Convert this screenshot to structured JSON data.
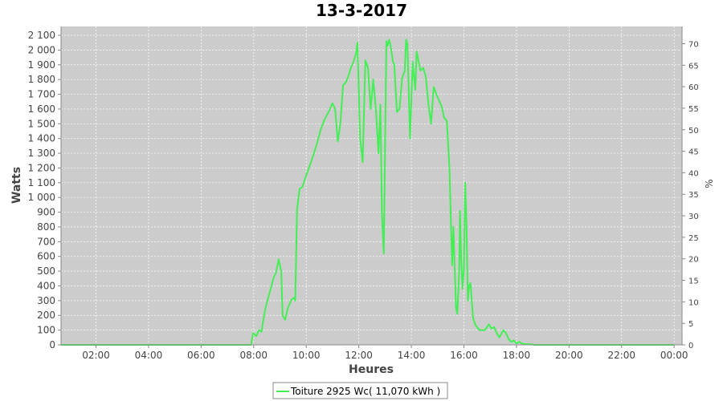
{
  "chart_data": {
    "type": "line",
    "title": "13-3-2017",
    "xlabel": "Heures",
    "ylabel": "Watts",
    "y2label": "%",
    "xlim": [
      0.67,
      24.3
    ],
    "ylim": [
      0,
      2160
    ],
    "y2lim": [
      0,
      74
    ],
    "x_tick_labels": [
      "02:00",
      "04:00",
      "06:00",
      "08:00",
      "10:00",
      "12:00",
      "14:00",
      "16:00",
      "18:00",
      "20:00",
      "22:00",
      "00:00"
    ],
    "y_ticks": [
      0,
      100,
      200,
      300,
      400,
      500,
      600,
      700,
      800,
      900,
      1000,
      1100,
      1200,
      1300,
      1400,
      1500,
      1600,
      1700,
      1800,
      1900,
      2000,
      2100
    ],
    "y_tick_labels": [
      "0",
      "100",
      "200",
      "300",
      "400",
      "500",
      "600",
      "700",
      "800",
      "900",
      "1 000",
      "1 100",
      "1 200",
      "1 300",
      "1 400",
      "1 500",
      "1 600",
      "1 700",
      "1 800",
      "1 900",
      "2 000",
      "2 100"
    ],
    "y2_ticks": [
      0,
      5,
      10,
      15,
      20,
      25,
      30,
      35,
      40,
      45,
      50,
      55,
      60,
      65,
      70
    ],
    "grid": true,
    "legend_position": "bottom-center",
    "series": [
      {
        "name": "Toiture 2925 Wc( 11,070 kWh )",
        "color": "#44ee55",
        "x": [
          0.67,
          7.0,
          7.9,
          7.98,
          8.1,
          8.2,
          8.3,
          8.35,
          8.45,
          8.55,
          8.65,
          8.75,
          8.85,
          8.95,
          9.05,
          9.1,
          9.2,
          9.3,
          9.45,
          9.55,
          9.58,
          9.65,
          9.75,
          9.85,
          10.0,
          10.2,
          10.4,
          10.55,
          10.7,
          10.85,
          11.0,
          11.1,
          11.2,
          11.3,
          11.4,
          11.5,
          11.6,
          11.7,
          11.8,
          11.9,
          11.95,
          12.05,
          12.15,
          12.25,
          12.35,
          12.45,
          12.5,
          12.55,
          12.65,
          12.75,
          12.82,
          12.88,
          12.95,
          13.05,
          13.1,
          13.15,
          13.2,
          13.3,
          13.35,
          13.45,
          13.55,
          13.65,
          13.75,
          13.8,
          13.85,
          13.95,
          14.05,
          14.15,
          14.2,
          14.3,
          14.35,
          14.45,
          14.55,
          14.65,
          14.75,
          14.85,
          14.95,
          15.05,
          15.15,
          15.25,
          15.35,
          15.45,
          15.55,
          15.6,
          15.65,
          15.7,
          15.75,
          15.82,
          15.85,
          15.9,
          15.95,
          16.0,
          16.05,
          16.1,
          16.15,
          16.2,
          16.25,
          16.3,
          16.35,
          16.45,
          16.6,
          16.8,
          16.95,
          17.05,
          17.15,
          17.25,
          17.35,
          17.5,
          17.6,
          17.7,
          17.8,
          17.9,
          18.0,
          18.1,
          18.2,
          18.3,
          18.5,
          18.7,
          19.0,
          24.0
        ],
        "values": [
          0,
          0,
          0,
          80,
          60,
          100,
          90,
          150,
          250,
          320,
          380,
          450,
          490,
          580,
          500,
          200,
          170,
          250,
          310,
          320,
          300,
          920,
          1060,
          1070,
          1150,
          1250,
          1360,
          1460,
          1530,
          1580,
          1640,
          1600,
          1380,
          1500,
          1760,
          1780,
          1820,
          1880,
          1920,
          1980,
          2050,
          1400,
          1240,
          1930,
          1880,
          1600,
          1700,
          1800,
          1600,
          1300,
          1630,
          900,
          620,
          2060,
          2030,
          2070,
          2040,
          1920,
          1900,
          1580,
          1600,
          1810,
          1860,
          2070,
          2040,
          1400,
          1920,
          1730,
          1990,
          1900,
          1860,
          1880,
          1820,
          1630,
          1500,
          1750,
          1700,
          1660,
          1620,
          1540,
          1520,
          1200,
          540,
          800,
          520,
          250,
          210,
          500,
          910,
          560,
          380,
          520,
          1100,
          800,
          300,
          400,
          420,
          300,
          180,
          130,
          100,
          100,
          140,
          110,
          120,
          80,
          50,
          100,
          80,
          40,
          20,
          30,
          10,
          20,
          10,
          5,
          5,
          0,
          0,
          0
        ]
      }
    ]
  }
}
